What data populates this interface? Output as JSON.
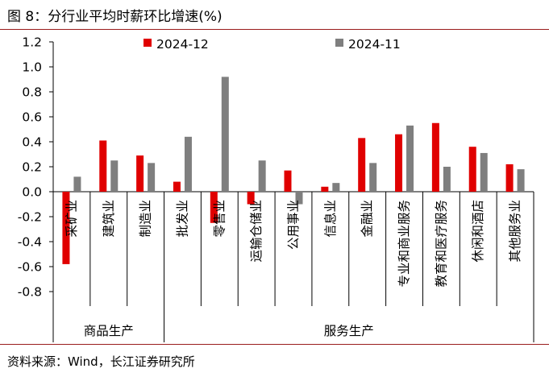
{
  "figure": {
    "title": "图 8：分行业平均时薪环比增速(%)",
    "source": "资料来源：Wind，长江证券研究所"
  },
  "chart_data": {
    "type": "bar",
    "categories": [
      "采矿业",
      "建筑业",
      "制造业",
      "批发业",
      "零售业",
      "运输仓储业",
      "公用事业",
      "信息业",
      "金融业",
      "专业和商业服务",
      "教育和医疗服务",
      "休闲和酒店",
      "其他服务业"
    ],
    "series": [
      {
        "name": "2024-12",
        "color": "#e00000",
        "values": [
          -0.58,
          0.41,
          0.29,
          0.08,
          -0.25,
          -0.1,
          0.17,
          0.04,
          0.43,
          0.46,
          0.55,
          0.36,
          0.22
        ]
      },
      {
        "name": "2024-11",
        "color": "#7f7f7f",
        "values": [
          0.12,
          0.25,
          0.23,
          0.44,
          0.92,
          0.25,
          -0.1,
          0.07,
          0.23,
          0.53,
          0.2,
          0.31,
          0.18
        ]
      }
    ],
    "groups": [
      {
        "label": "商品生产",
        "count": 3
      },
      {
        "label": "服务生产",
        "count": 10
      }
    ],
    "ylim": [
      -0.8,
      1.2
    ],
    "yticks": [
      "1.2",
      "1.0",
      "0.8",
      "0.6",
      "0.4",
      "0.2",
      "0.0",
      "-0.2",
      "-0.4",
      "-0.6",
      "-0.8"
    ],
    "ytick_values": [
      1.2,
      1.0,
      0.8,
      0.6,
      0.4,
      0.2,
      0.0,
      -0.2,
      -0.4,
      -0.6,
      -0.8
    ],
    "legend_position": "top",
    "grid": false
  }
}
